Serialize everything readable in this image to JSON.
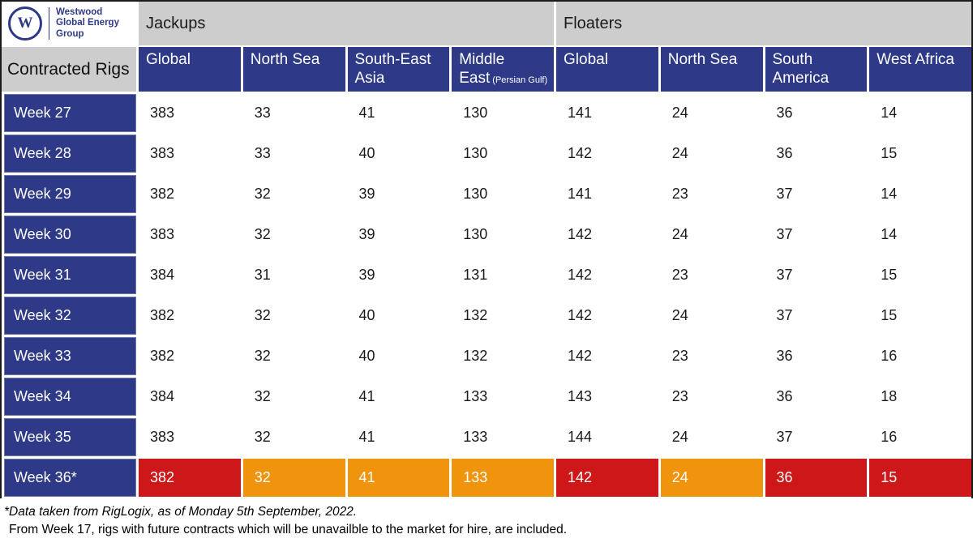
{
  "colors": {
    "navy": "#2E3A87",
    "gray": "#CDCDCD",
    "red": "#CE1719",
    "orange": "#F0930D",
    "frame_border": "#1A1A1A"
  },
  "brand": {
    "logo_monogram": "W",
    "name_line1": "Westwood",
    "name_line2": "Global Energy",
    "name_line3": "Group"
  },
  "chart_data": {
    "type": "table",
    "title": "Contracted Rigs",
    "corner_label": "Contracted Rigs",
    "groups": [
      {
        "label": "Jackups",
        "span": 4
      },
      {
        "label": "Floaters",
        "span": 4
      }
    ],
    "columns": [
      {
        "group": "Jackups",
        "label": "Global",
        "suffix": ""
      },
      {
        "group": "Jackups",
        "label": "North Sea",
        "suffix": ""
      },
      {
        "group": "Jackups",
        "label": "South-East Asia",
        "suffix": ""
      },
      {
        "group": "Jackups",
        "label": "Middle East",
        "suffix": "(Persian Gulf)"
      },
      {
        "group": "Floaters",
        "label": "Global",
        "suffix": ""
      },
      {
        "group": "Floaters",
        "label": "North Sea",
        "suffix": ""
      },
      {
        "group": "Floaters",
        "label": "South America",
        "suffix": ""
      },
      {
        "group": "Floaters",
        "label": "West Africa",
        "suffix": ""
      }
    ],
    "rows": [
      {
        "label": "Week 27",
        "values": [
          383,
          33,
          41,
          130,
          141,
          24,
          36,
          14
        ]
      },
      {
        "label": "Week 28",
        "values": [
          383,
          33,
          40,
          130,
          142,
          24,
          36,
          15
        ]
      },
      {
        "label": "Week 29",
        "values": [
          382,
          32,
          39,
          130,
          141,
          23,
          37,
          14
        ]
      },
      {
        "label": "Week 30",
        "values": [
          383,
          32,
          39,
          130,
          142,
          24,
          37,
          14
        ]
      },
      {
        "label": "Week 31",
        "values": [
          384,
          31,
          39,
          131,
          142,
          23,
          37,
          15
        ]
      },
      {
        "label": "Week 32",
        "values": [
          382,
          32,
          40,
          132,
          142,
          24,
          37,
          15
        ]
      },
      {
        "label": "Week 33",
        "values": [
          382,
          32,
          40,
          132,
          142,
          23,
          36,
          16
        ]
      },
      {
        "label": "Week 34",
        "values": [
          384,
          32,
          41,
          133,
          143,
          23,
          36,
          18
        ]
      },
      {
        "label": "Week 35",
        "values": [
          383,
          32,
          41,
          133,
          144,
          24,
          37,
          16
        ]
      },
      {
        "label": "Week 36*",
        "values": [
          382,
          32,
          41,
          133,
          142,
          24,
          36,
          15
        ],
        "highlight": [
          "red",
          "orange",
          "orange",
          "orange",
          "red",
          "orange",
          "red",
          "red"
        ]
      }
    ]
  },
  "footnotes": {
    "line1": "*Data taken from RigLogix, as of Monday 5th September, 2022.",
    "line2": "From Week 17, rigs with future contracts which will be unavailble to the market for hire, are included."
  }
}
